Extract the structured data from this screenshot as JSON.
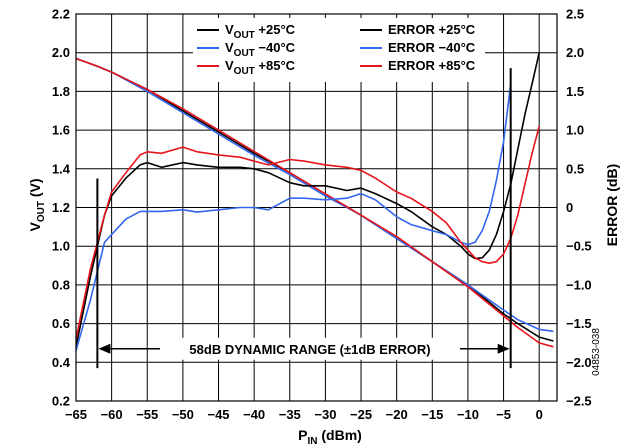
{
  "chart_data": {
    "type": "line",
    "xlabel": "P",
    "xlabel_sub": "IN",
    "xlabel_unit": " (dBm)",
    "ylabel": "V",
    "ylabel_sub": "OUT",
    "ylabel_unit": " (V)",
    "y2label": "ERROR (dB)",
    "xlim": [
      -65,
      2.5
    ],
    "ylim": [
      0.2,
      2.2
    ],
    "y2lim": [
      -2.5,
      2.5
    ],
    "x_ticks": [
      -65,
      -60,
      -55,
      -50,
      -45,
      -40,
      -35,
      -30,
      -25,
      -20,
      -15,
      -10,
      -5,
      0
    ],
    "x_tick_labels": [
      "−65",
      "−60",
      "−55",
      "−50",
      "−45",
      "−40",
      "−35",
      "−30",
      "−25",
      "−20",
      "−15",
      "−10",
      "−5",
      "0"
    ],
    "y_ticks": [
      0.2,
      0.4,
      0.6,
      0.8,
      1.0,
      1.2,
      1.4,
      1.6,
      1.8,
      2.0,
      2.2
    ],
    "y_tick_labels": [
      "0.2",
      "0.4",
      "0.6",
      "0.8",
      "1.0",
      "1.2",
      "1.4",
      "1.6",
      "1.8",
      "2.0",
      "2.2"
    ],
    "y2_ticks": [
      -2.5,
      -2.0,
      -1.5,
      -1.0,
      -0.5,
      0,
      0.5,
      1.0,
      1.5,
      2.0,
      2.5
    ],
    "y2_tick_labels": [
      "−2.5",
      "−2.0",
      "−1.5",
      "−1.0",
      "−0.5",
      "0",
      "0.5",
      "1.0",
      "1.5",
      "2.0",
      "2.5"
    ],
    "grid": true,
    "legend": {
      "placement": "top-center",
      "entries": [
        {
          "main": "V",
          "sub": "OUT",
          "rest": " +25°C"
        },
        {
          "main": "ERROR +25°C",
          "sub": "",
          "rest": ""
        },
        {
          "main": "V",
          "sub": "OUT",
          "rest": " −40°C"
        },
        {
          "main": "ERROR −40°C",
          "sub": "",
          "rest": ""
        },
        {
          "main": "V",
          "sub": "OUT",
          "rest": " +85°C"
        },
        {
          "main": "ERROR +85°C",
          "sub": "",
          "rest": ""
        }
      ]
    },
    "colors": {
      "t25": "#000000",
      "tm40": "#3366ee",
      "t85": "#e8141c"
    },
    "annotation": {
      "text": "58dB DYNAMIC RANGE (±1dB ERROR)",
      "from_x": -62,
      "to_x": -4,
      "y": 0.47
    },
    "range_markers": [
      {
        "x": -62,
        "y_from": 0.37,
        "y_to": 1.35
      },
      {
        "x": -4,
        "y_from": 0.37,
        "y_to": 1.92
      }
    ],
    "figure_id": "04853-038",
    "series": [
      {
        "key": "vout_25",
        "axis": "left",
        "color": "#000000",
        "x": [
          -65,
          -62,
          -60,
          -55,
          -50,
          -45,
          -40,
          -35,
          -30,
          -25,
          -20,
          -15,
          -10,
          -5,
          -3,
          0,
          2
        ],
        "y": [
          1.97,
          1.93,
          1.9,
          1.81,
          1.7,
          1.59,
          1.48,
          1.38,
          1.27,
          1.16,
          1.04,
          0.92,
          0.8,
          0.65,
          0.6,
          0.53,
          0.51
        ]
      },
      {
        "key": "vout_m40",
        "axis": "left",
        "color": "#3366ee",
        "x": [
          -65,
          -62,
          -60,
          -55,
          -50,
          -45,
          -40,
          -35,
          -30,
          -25,
          -20,
          -15,
          -10,
          -5,
          -3,
          0,
          2
        ],
        "y": [
          1.97,
          1.93,
          1.9,
          1.8,
          1.69,
          1.58,
          1.47,
          1.37,
          1.26,
          1.16,
          1.04,
          0.92,
          0.8,
          0.67,
          0.62,
          0.57,
          0.56
        ]
      },
      {
        "key": "vout_85",
        "axis": "left",
        "color": "#e8141c",
        "x": [
          -65,
          -62,
          -60,
          -55,
          -50,
          -45,
          -40,
          -35,
          -30,
          -25,
          -20,
          -15,
          -10,
          -5,
          -3,
          0,
          2
        ],
        "y": [
          1.97,
          1.93,
          1.9,
          1.81,
          1.71,
          1.6,
          1.49,
          1.38,
          1.27,
          1.16,
          1.05,
          0.92,
          0.79,
          0.64,
          0.58,
          0.5,
          0.48
        ]
      },
      {
        "key": "err_25",
        "axis": "right",
        "color": "#000000",
        "x": [
          -65,
          -63,
          -61,
          -60,
          -58,
          -56,
          -55,
          -53,
          -50,
          -48,
          -45,
          -42,
          -40,
          -38,
          -35,
          -33,
          -30,
          -27,
          -25,
          -23,
          -20,
          -18,
          -15,
          -13,
          -11,
          -10,
          -9,
          -8,
          -7,
          -6,
          -5,
          -4,
          -3,
          -2,
          -1,
          0
        ],
        "y": [
          -1.8,
          -0.9,
          -0.1,
          0.15,
          0.38,
          0.55,
          0.58,
          0.52,
          0.58,
          0.55,
          0.52,
          0.52,
          0.5,
          0.45,
          0.32,
          0.28,
          0.28,
          0.22,
          0.25,
          0.18,
          0.05,
          -0.05,
          -0.25,
          -0.35,
          -0.5,
          -0.6,
          -0.66,
          -0.65,
          -0.55,
          -0.35,
          -0.05,
          0.3,
          0.75,
          1.2,
          1.6,
          2.0
        ]
      },
      {
        "key": "err_m40",
        "axis": "right",
        "color": "#3366ee",
        "x": [
          -65,
          -63,
          -61,
          -60,
          -58,
          -56,
          -55,
          -53,
          -50,
          -48,
          -45,
          -42,
          -40,
          -38,
          -35,
          -33,
          -30,
          -27,
          -25,
          -23,
          -20,
          -18,
          -15,
          -13,
          -11,
          -10,
          -9,
          -8,
          -7,
          -6,
          -5,
          -4
        ],
        "y": [
          -1.85,
          -1.2,
          -0.45,
          -0.35,
          -0.15,
          -0.05,
          -0.05,
          -0.05,
          -0.03,
          -0.06,
          -0.03,
          0,
          0,
          -0.03,
          0.12,
          0.12,
          0.1,
          0.12,
          0.18,
          0.1,
          -0.12,
          -0.22,
          -0.3,
          -0.35,
          -0.45,
          -0.48,
          -0.45,
          -0.3,
          -0.05,
          0.35,
          0.85,
          1.6
        ]
      },
      {
        "key": "err_85",
        "axis": "right",
        "color": "#e8141c",
        "x": [
          -65,
          -63,
          -61,
          -60,
          -58,
          -56,
          -55,
          -53,
          -50,
          -48,
          -45,
          -42,
          -40,
          -38,
          -35,
          -33,
          -30,
          -27,
          -25,
          -23,
          -20,
          -18,
          -15,
          -13,
          -11,
          -10,
          -9,
          -8,
          -7,
          -6,
          -5,
          -4,
          -3,
          -2,
          -1,
          0
        ],
        "y": [
          -1.7,
          -0.8,
          -0.1,
          0.2,
          0.45,
          0.68,
          0.72,
          0.7,
          0.78,
          0.72,
          0.68,
          0.65,
          0.6,
          0.55,
          0.62,
          0.6,
          0.55,
          0.52,
          0.48,
          0.38,
          0.2,
          0.12,
          -0.05,
          -0.2,
          -0.45,
          -0.55,
          -0.65,
          -0.7,
          -0.72,
          -0.7,
          -0.6,
          -0.4,
          -0.1,
          0.3,
          0.7,
          1.05
        ]
      }
    ]
  }
}
